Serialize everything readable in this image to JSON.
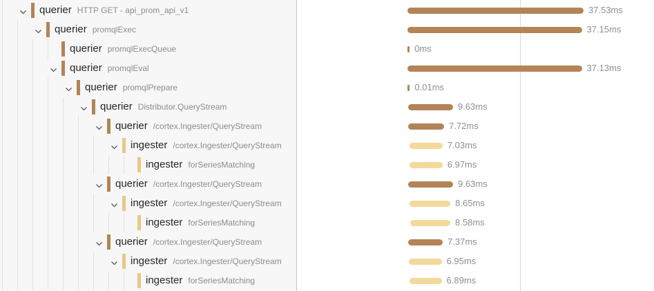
{
  "colors": {
    "querier_marker": "#b28458",
    "querier_bar": "#b28458",
    "ingester_marker": "#e9c887",
    "ingester_bar": "#f3d99c",
    "service_text": "#262626",
    "operation_text": "#8c8c8c",
    "duration_text": "#8f8f8f"
  },
  "rows": [
    {
      "service": "querier",
      "operation": "HTTP GET - api_prom_api_v1",
      "level": 0,
      "expandable": true,
      "duration_label": "37.53ms",
      "duration_ms": 37.53,
      "start_ms": 0
    },
    {
      "service": "querier",
      "operation": "promqlExec",
      "level": 1,
      "expandable": true,
      "duration_label": "37.15ms",
      "duration_ms": 37.15,
      "start_ms": 0.02
    },
    {
      "service": "querier",
      "operation": "promqlExecQueue",
      "level": 2,
      "expandable": false,
      "duration_label": "0ms",
      "duration_ms": 0,
      "start_ms": 0.03
    },
    {
      "service": "querier",
      "operation": "promqlEval",
      "level": 2,
      "expandable": true,
      "duration_label": "37.13ms",
      "duration_ms": 37.13,
      "start_ms": 0.04
    },
    {
      "service": "querier",
      "operation": "promqlPrepare",
      "level": 3,
      "expandable": true,
      "duration_label": "0.01ms",
      "duration_ms": 0.01,
      "start_ms": 0.06
    },
    {
      "service": "querier",
      "operation": "Distributor.QueryStream",
      "level": 4,
      "expandable": true,
      "duration_label": "9.63ms",
      "duration_ms": 9.63,
      "start_ms": 0.08
    },
    {
      "service": "querier",
      "operation": "/cortex.Ingester/QueryStream",
      "level": 5,
      "expandable": true,
      "duration_label": "7.72ms",
      "duration_ms": 7.72,
      "start_ms": 0.1
    },
    {
      "service": "ingester",
      "operation": "/cortex.Ingester/QueryStream",
      "level": 6,
      "expandable": true,
      "duration_label": "7.03ms",
      "duration_ms": 7.03,
      "start_ms": 0.45
    },
    {
      "service": "ingester",
      "operation": "forSeriesMatching",
      "level": 7,
      "expandable": false,
      "duration_label": "6.97ms",
      "duration_ms": 6.97,
      "start_ms": 0.5
    },
    {
      "service": "querier",
      "operation": "/cortex.Ingester/QueryStream",
      "level": 5,
      "expandable": true,
      "duration_label": "9.63ms",
      "duration_ms": 9.63,
      "start_ms": 0.1
    },
    {
      "service": "ingester",
      "operation": "/cortex.Ingester/QueryStream",
      "level": 6,
      "expandable": true,
      "duration_label": "8.65ms",
      "duration_ms": 8.65,
      "start_ms": 0.5
    },
    {
      "service": "ingester",
      "operation": "forSeriesMatching",
      "level": 7,
      "expandable": false,
      "duration_label": "8.58ms",
      "duration_ms": 8.58,
      "start_ms": 0.55
    },
    {
      "service": "querier",
      "operation": "/cortex.Ingester/QueryStream",
      "level": 5,
      "expandable": true,
      "duration_label": "7.37ms",
      "duration_ms": 7.37,
      "start_ms": 0.15
    },
    {
      "service": "ingester",
      "operation": "/cortex.Ingester/QueryStream",
      "level": 6,
      "expandable": true,
      "duration_label": "6.95ms",
      "duration_ms": 6.95,
      "start_ms": 0.35
    },
    {
      "service": "ingester",
      "operation": "forSeriesMatching",
      "level": 7,
      "expandable": false,
      "duration_label": "6.89ms",
      "duration_ms": 6.89,
      "start_ms": 0.4
    }
  ]
}
